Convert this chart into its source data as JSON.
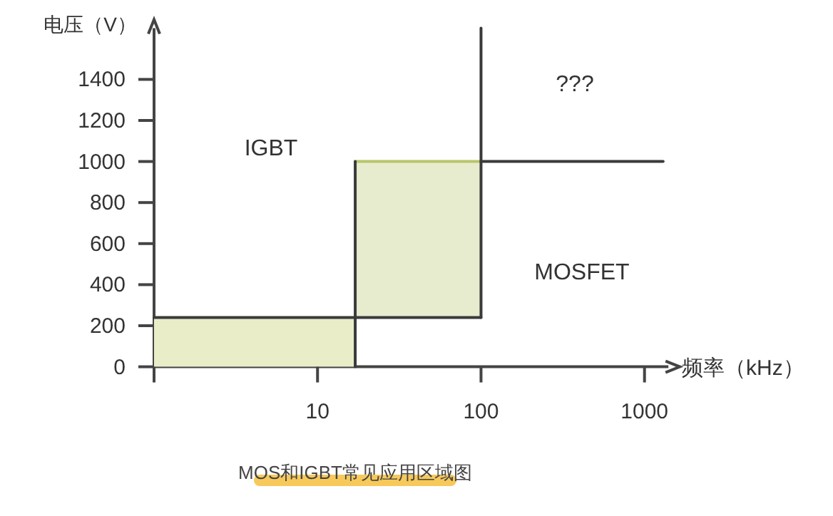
{
  "chart_data": {
    "type": "line",
    "title": "MOS和IGBT常见应用区域图",
    "xlabel": "频率（kHz）",
    "ylabel": "电压（V）",
    "log": "x",
    "xlim": [
      1,
      1400
    ],
    "xticks": [
      {
        "value": 1,
        "label": null
      },
      10,
      100,
      1000
    ],
    "ylim": [
      0,
      1650
    ],
    "yticks": [
      0,
      200,
      400,
      600,
      800,
      1000,
      1200,
      1400
    ],
    "series": [
      {
        "type": "area",
        "color": "#e9eec9",
        "x": [
          1,
          17
        ],
        "values": [
          240,
          240
        ]
      },
      {
        "color": "#b9c56a",
        "x": [
          17,
          100
        ],
        "values": [
          1000,
          1000
        ],
        "lower": [
          240,
          240
        ],
        "upper": [
          1000,
          1000
        ]
      },
      {
        "color": "#3a3a3a",
        "x": [
          1,
          100
        ],
        "values": [
          240,
          240
        ]
      },
      {
        "color": "#3a3a3a",
        "x": [
          17,
          17
        ],
        "values": [
          0,
          1000
        ]
      },
      {
        "color": "#3a3a3a",
        "x": [
          100,
          1300
        ],
        "values": [
          1000,
          1000
        ]
      },
      {
        "color": "#3a3a3a",
        "x": [
          100,
          100
        ],
        "values": [
          240,
          1650
        ]
      }
    ],
    "annotations": [
      "IGBT",
      "MOSFET",
      "???"
    ]
  }
}
